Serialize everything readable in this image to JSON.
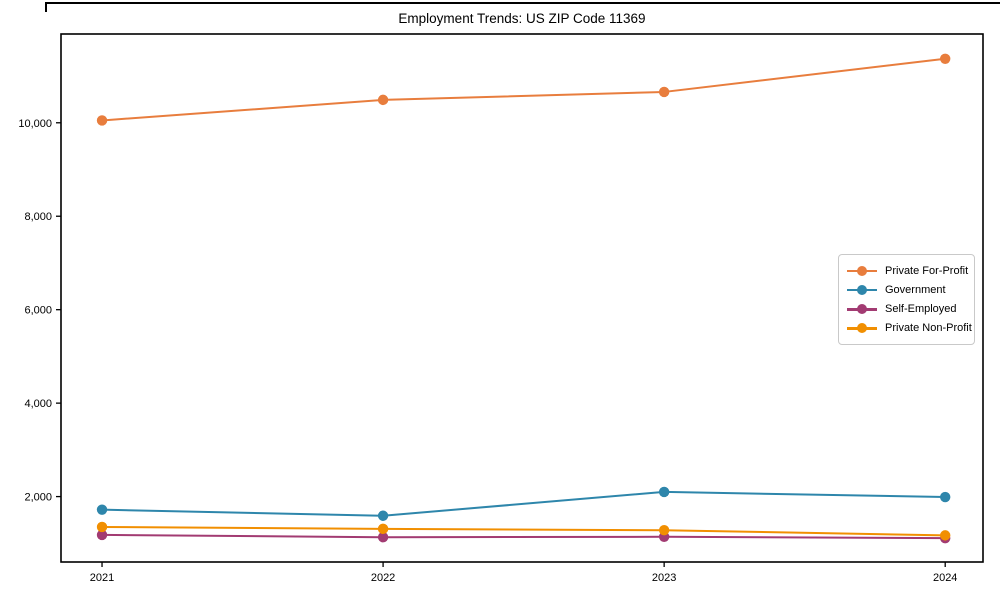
{
  "title": "Employment Trends: US ZIP Code 11369",
  "chart_data": {
    "type": "line",
    "title": "Employment Trends: US ZIP Code 11369",
    "x": [
      2021,
      2022,
      2023,
      2024
    ],
    "xticklabels": [
      "2021",
      "2022",
      "2023",
      "2024"
    ],
    "series": [
      {
        "name": "Private For-Profit",
        "color": "#E87D3D",
        "values": [
          10050,
          10490,
          10660,
          11370
        ]
      },
      {
        "name": "Government",
        "color": "#2E86AB",
        "values": [
          1720,
          1590,
          2100,
          1990
        ]
      },
      {
        "name": "Self-Employed",
        "color": "#A23B72",
        "values": [
          1180,
          1130,
          1140,
          1110
        ]
      },
      {
        "name": "Private Non-Profit",
        "color": "#F18F01",
        "values": [
          1350,
          1310,
          1280,
          1170
        ]
      }
    ],
    "ylim": [
      600,
      11900
    ],
    "yticks": [
      2000,
      4000,
      6000,
      8000,
      10000
    ],
    "ytick_labels": [
      "2,000",
      "4,000",
      "6,000",
      "8,000",
      "10,000"
    ],
    "grid": false,
    "marker": "circle",
    "legend_position": "center right",
    "axis_color": "#000000",
    "background_color": "#ffffff"
  }
}
